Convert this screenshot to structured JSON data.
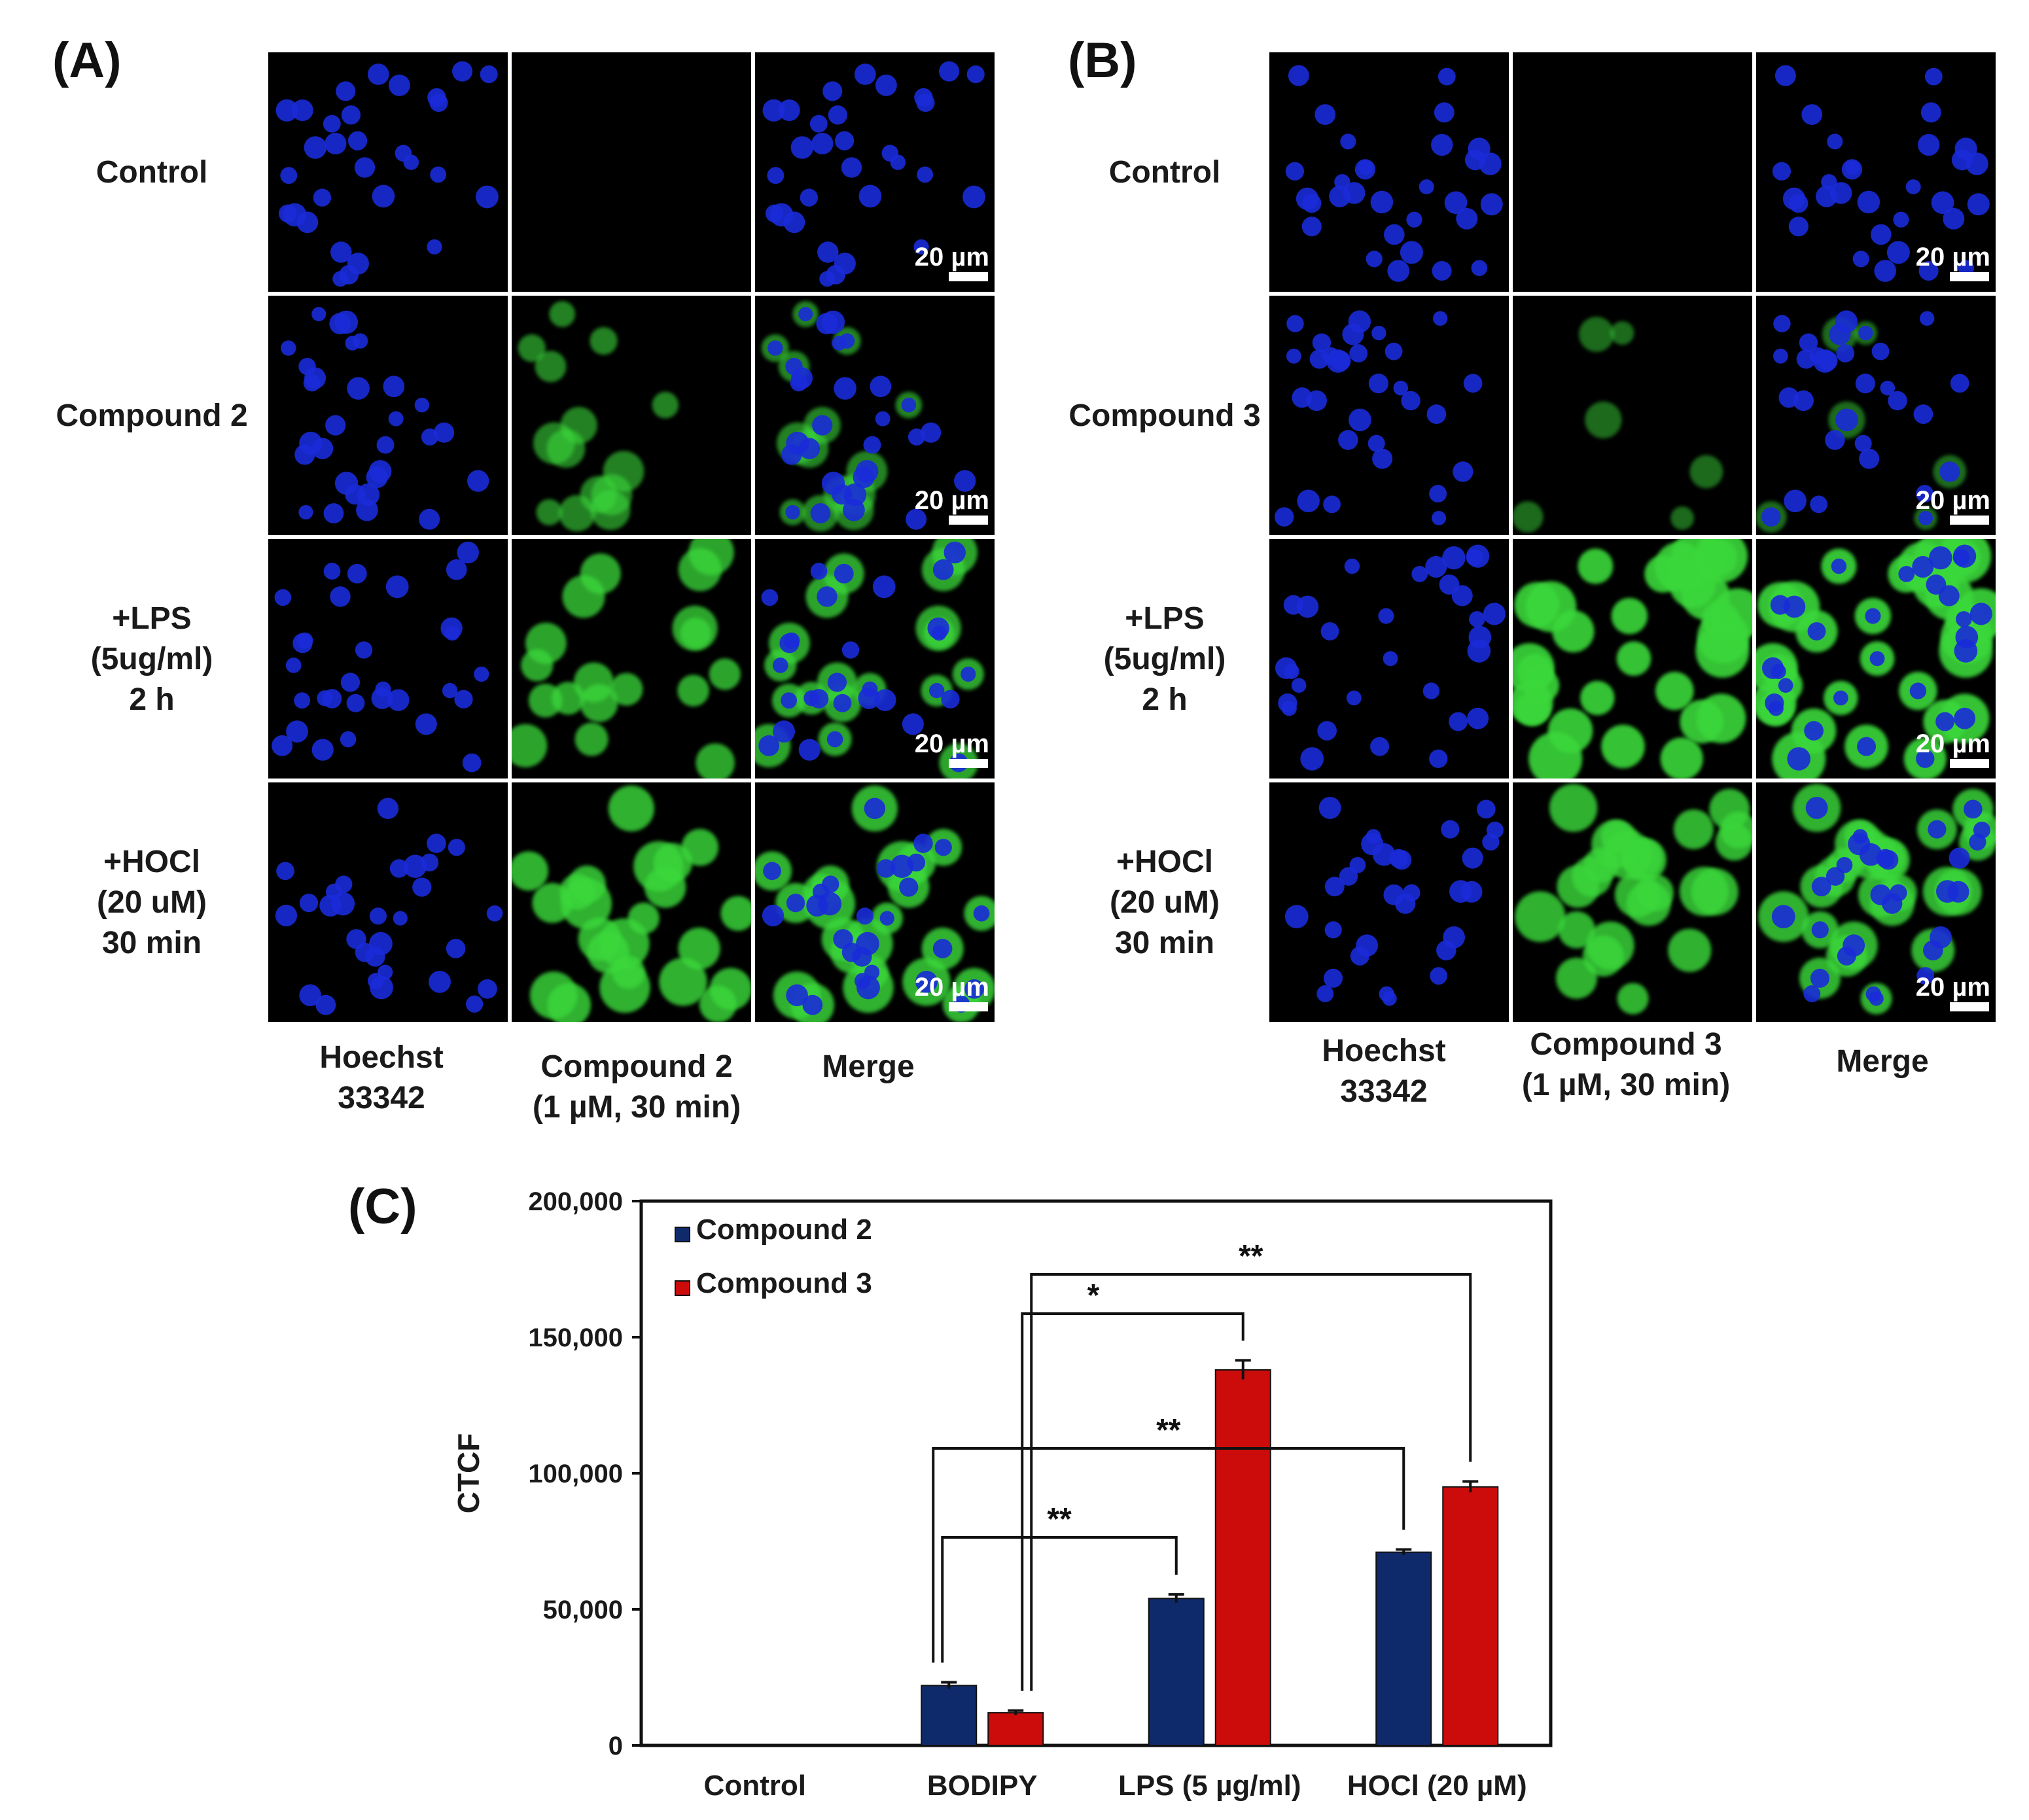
{
  "panel_a": {
    "label": "(A)",
    "rows": [
      {
        "lines": [
          "Control"
        ]
      },
      {
        "lines": [
          "Compound  2"
        ]
      },
      {
        "lines": [
          "+LPS",
          "(5ug/ml)",
          "2 h"
        ]
      },
      {
        "lines": [
          "+HOCl",
          "(20 uM)",
          "30 min"
        ]
      }
    ],
    "columns": [
      {
        "lines": [
          "Hoechst",
          "33342"
        ]
      },
      {
        "lines": [
          "Compound  2",
          "(1 µM, 30 min)"
        ]
      },
      {
        "lines": [
          "Merge"
        ]
      }
    ],
    "green_intensity": [
      0,
      0.45,
      0.75,
      0.85
    ]
  },
  "panel_b": {
    "label": "(B)",
    "rows": [
      {
        "lines": [
          "Control"
        ]
      },
      {
        "lines": [
          "Compound  3"
        ]
      },
      {
        "lines": [
          "+LPS",
          "(5ug/ml)",
          "2 h"
        ]
      },
      {
        "lines": [
          "+HOCl",
          "(20 uM)",
          "30 min"
        ]
      }
    ],
    "columns": [
      {
        "lines": [
          "Hoechst",
          "33342"
        ]
      },
      {
        "lines": [
          "Compound  3",
          "(1 µM, 30 min)"
        ]
      },
      {
        "lines": [
          "Merge"
        ]
      }
    ],
    "green_intensity": [
      0,
      0.25,
      1.0,
      0.85
    ]
  },
  "scale_bar_label": "20 µm",
  "colors": {
    "nucleus": "#1a2bd8",
    "probe": "#3ad83a",
    "compound2": "#0f2a6b",
    "compound3": "#cc0b0b"
  },
  "chart_data": {
    "panel_label": "(C)",
    "type": "bar",
    "categories": [
      "Control",
      "BODIPY",
      "LPS (5 µg/ml)",
      "HOCl (20 µM)"
    ],
    "ylabel": "CTCF",
    "ylim": [
      0,
      200000
    ],
    "yticks": [
      0,
      50000,
      100000,
      150000,
      200000
    ],
    "ytick_labels": [
      "0",
      "50,000",
      "100,000",
      "150,000",
      "200,000"
    ],
    "legend_position": "top-left",
    "series": [
      {
        "name": "Compound 2",
        "values": [
          0,
          22000,
          54000,
          71000
        ],
        "errors": [
          0,
          1200,
          1500,
          1000
        ]
      },
      {
        "name": "Compound 3",
        "values": [
          0,
          12000,
          138000,
          95000
        ],
        "errors": [
          0,
          800,
          3500,
          2000
        ]
      }
    ],
    "significance": [
      {
        "from": [
          1,
          0
        ],
        "to": [
          2,
          0
        ],
        "label": "**"
      },
      {
        "from": [
          1,
          0
        ],
        "to": [
          3,
          0
        ],
        "label": "**"
      },
      {
        "from": [
          1,
          1
        ],
        "to": [
          2,
          1
        ],
        "label": "*"
      },
      {
        "from": [
          1,
          1
        ],
        "to": [
          3,
          1
        ],
        "label": "**"
      }
    ]
  }
}
